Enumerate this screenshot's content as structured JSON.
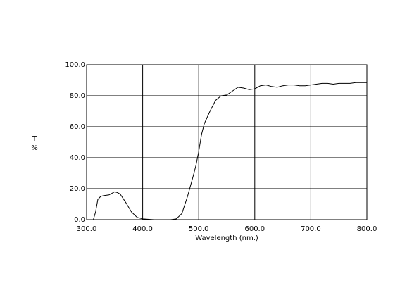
{
  "chart_data": {
    "type": "line",
    "xlabel": "Wavelength (nm.)",
    "ylabel_lines": [
      "T",
      "%"
    ],
    "x": [
      312,
      316,
      320,
      325,
      330,
      340,
      350,
      355,
      360,
      370,
      380,
      390,
      400,
      420,
      450,
      460,
      470,
      480,
      490,
      495,
      500,
      505,
      510,
      520,
      530,
      540,
      550,
      560,
      570,
      580,
      590,
      600,
      610,
      620,
      630,
      640,
      650,
      660,
      670,
      680,
      690,
      700,
      710,
      720,
      730,
      740,
      750,
      760,
      770,
      780,
      790,
      800
    ],
    "series": [
      {
        "name": "T",
        "color": "#000000",
        "values": [
          0,
          5,
          13,
          15,
          15.5,
          16,
          18,
          17.5,
          16.5,
          11,
          5,
          1.5,
          0.5,
          0,
          0,
          0.5,
          4,
          15,
          28,
          35,
          44,
          55,
          62,
          70,
          77,
          80,
          80.5,
          83,
          85.5,
          85,
          84,
          84.5,
          86.5,
          87,
          86,
          85.5,
          86.5,
          87,
          87,
          86.5,
          86.5,
          87,
          87.5,
          88,
          88,
          87.5,
          88,
          88,
          88,
          88.5,
          88.5,
          88.5
        ]
      }
    ],
    "xlim": [
      300,
      800
    ],
    "ylim": [
      0,
      100
    ],
    "xticks": [
      {
        "value": 300,
        "label": "300.0"
      },
      {
        "value": 400,
        "label": "400.0"
      },
      {
        "value": 500,
        "label": "500.0"
      },
      {
        "value": 600,
        "label": "600.0"
      },
      {
        "value": 700,
        "label": "700.0"
      },
      {
        "value": 800,
        "label": "800.0"
      }
    ],
    "yticks": [
      {
        "value": 0,
        "label": "0.0"
      },
      {
        "value": 20,
        "label": "20.0"
      },
      {
        "value": 40,
        "label": "40.0"
      },
      {
        "value": 60,
        "label": "60.0"
      },
      {
        "value": 80,
        "label": "80.0"
      },
      {
        "value": 100,
        "label": "100.0"
      }
    ],
    "grid": true
  }
}
